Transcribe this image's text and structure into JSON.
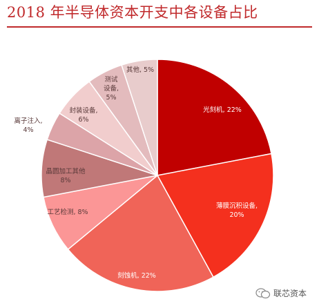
{
  "chart_data": {
    "type": "pie",
    "title": "2018 年半导体资本开支中各设备占比",
    "slices": [
      {
        "label": "光刻机",
        "value": 22,
        "display": "22%",
        "color": "#c00000"
      },
      {
        "label": "薄膜沉积设备",
        "value": 20,
        "display": "20%",
        "color": "#f4301e"
      },
      {
        "label": "刻蚀机",
        "value": 22,
        "display": "22%",
        "color": "#f06458"
      },
      {
        "label": "工艺检测",
        "value": 8,
        "display": "8%",
        "color": "#fb9696"
      },
      {
        "label": "晶圆加工其他",
        "value": 8,
        "display": "8%",
        "color": "#c07878"
      },
      {
        "label": "离子注入",
        "value": 4,
        "display": "4%",
        "color": "#dca4a8"
      },
      {
        "label": "封装设备",
        "value": 6,
        "display": "6%",
        "color": "#f1cdcd"
      },
      {
        "label": "测试设备",
        "value": 5,
        "display": "5%",
        "color": "#e3bbbd"
      },
      {
        "label": "其他",
        "value": 5,
        "display": "5%",
        "color": "#e8cccc"
      }
    ]
  },
  "footer": {
    "source": "联芯资本",
    "icon": "wechat-icon"
  }
}
